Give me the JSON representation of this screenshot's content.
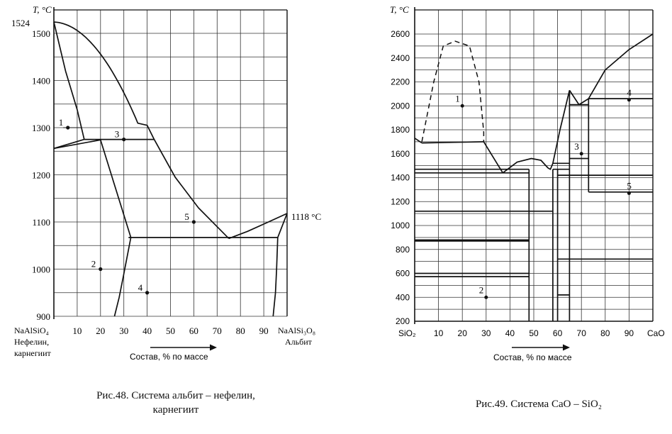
{
  "diagram1": {
    "y_axis_title": "T, °C",
    "y_ticks": [
      "900",
      "1000",
      "1100",
      "1200",
      "1300",
      "1400",
      "1500"
    ],
    "y_max_label": "1524",
    "x_ticks": [
      "10",
      "20",
      "30",
      "40",
      "50",
      "60",
      "70",
      "80",
      "90"
    ],
    "left_end": [
      "NaAlSiO₄",
      "Нефелин,",
      "карнегиит"
    ],
    "right_end": [
      "NaAlSi₃O₈",
      "Альбит"
    ],
    "right_temp_label": "1118 °C",
    "x_axis_title": "Состав, %  по массе",
    "points": [
      {
        "label": "1",
        "x": 6,
        "T": 1300
      },
      {
        "label": "2",
        "x": 20,
        "T": 1000
      },
      {
        "label": "3",
        "x": 30,
        "T": 1275
      },
      {
        "label": "4",
        "x": 40,
        "T": 950
      },
      {
        "label": "5",
        "x": 60,
        "T": 1100
      }
    ],
    "caption": [
      "Рис.48. Система альбит – нефелин,",
      "карнегиит"
    ]
  },
  "diagram2": {
    "y_axis_title": "T, °C",
    "y_ticks": [
      "200",
      "400",
      "600",
      "800",
      "1000",
      "1200",
      "1400",
      "1600",
      "1800",
      "2000",
      "2200",
      "2400",
      "2600"
    ],
    "x_ticks": [
      "10",
      "20",
      "30",
      "40",
      "50",
      "60",
      "70",
      "80",
      "90"
    ],
    "left_end": "SiO₂",
    "right_end": "CaO",
    "x_axis_title": "Состав, %  по массе",
    "points": [
      {
        "label": "1",
        "x": 20,
        "T": 2000
      },
      {
        "label": "2",
        "x": 30,
        "T": 400
      },
      {
        "label": "3",
        "x": 70,
        "T": 1600
      },
      {
        "label": "4",
        "x": 90,
        "T": 2050
      },
      {
        "label": "5",
        "x": 90,
        "T": 1270
      }
    ],
    "caption": "Рис.49. Система CaO – SiO₂"
  }
}
